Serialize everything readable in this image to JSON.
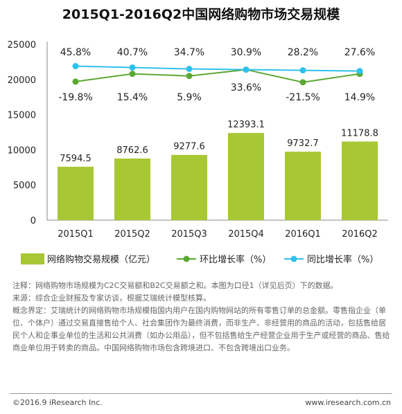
{
  "chart_data": {
    "type": "bar",
    "title": "2015Q1-2016Q2中国网络购物市场交易规模",
    "categories": [
      "2015Q1",
      "2015Q2",
      "2015Q3",
      "2015Q4",
      "2016Q1",
      "2016Q2"
    ],
    "series": [
      {
        "name": "网络购物交易规模（亿元）",
        "kind": "bar",
        "values": [
          7594.5,
          8762.6,
          9277.6,
          12393.1,
          9732.7,
          11178.8
        ],
        "color": "#a7c834"
      },
      {
        "name": "环比增长率（%）",
        "kind": "line",
        "values": [
          -19.8,
          15.4,
          5.9,
          33.6,
          -21.5,
          14.9
        ],
        "labels": [
          "-19.8%",
          "15.4%",
          "5.9%",
          "33.6%",
          "-21.5%",
          "14.9%"
        ],
        "plot_y": [
          19700,
          20800,
          20500,
          21400,
          19600,
          20800
        ],
        "color": "#5aa832"
      },
      {
        "name": "同比增长率（%）",
        "kind": "line",
        "values": [
          45.8,
          40.7,
          34.7,
          30.9,
          28.2,
          27.6
        ],
        "labels": [
          "45.8%",
          "40.7%",
          "34.7%",
          "30.9%",
          "28.2%",
          "27.6%"
        ],
        "plot_y": [
          21900,
          21700,
          21500,
          21400,
          21300,
          21200
        ],
        "color": "#2ec1ec"
      }
    ],
    "bar_labels": [
      "7594.5",
      "8762.6",
      "9277.6",
      "12393.1",
      "9732.7",
      "11178.8"
    ],
    "ylim": [
      0,
      25000
    ],
    "yticks": [
      "0",
      "5000",
      "10000",
      "15000",
      "20000",
      "25000"
    ],
    "grid": false,
    "legend_position": "bottom"
  },
  "notes": {
    "note": "注释：网络购物市场规模为C2C交易额和B2C交易额之和。本图为口径1（详见后页）下的数据。",
    "source": "来源：综合企业财报及专家访谈，根据艾瑞统计模型核算。",
    "definition": "概念界定：艾瑞统计的网络购物市场规模指国内用户在国内购物网站的所有零售订单的总金额。零售指企业（单位、个体户）通过交易直接售给个人、社会集团作为最终消费，而非生产、非经营用的商品的活动，包括售给居民个人和企事业单位的生活和公共消费（如办公用品），但不包括售给生产经营企业用于生产或经营的商品、售给商业单位用于转卖的商品。中国网络购物市场包含跨境进口、不包含跨境出口业务。"
  },
  "footer": {
    "copyright": "©2016.9 iResearch Inc.",
    "website": "www.iresearch.com.cn"
  }
}
